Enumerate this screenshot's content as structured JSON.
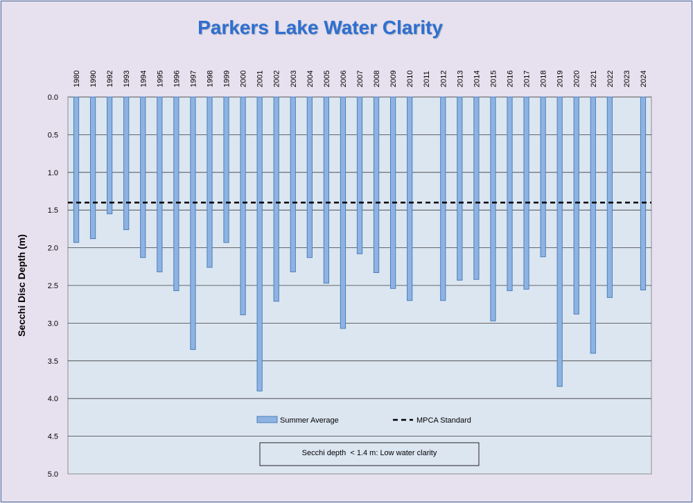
{
  "chart_data": {
    "type": "bar",
    "title": "Parkers Lake Water Clarity",
    "ylabel": "Secchi Disc Depth (m)",
    "xlabel": "",
    "ylim": [
      0,
      5
    ],
    "y_inverted": true,
    "y_ticks": [
      "0.0",
      "0.5",
      "1.0",
      "1.5",
      "2.0",
      "2.5",
      "3.0",
      "3.5",
      "4.0",
      "4.5",
      "5.0"
    ],
    "grid": true,
    "x_label_position": "top",
    "categories": [
      "1980",
      "1990",
      "1992",
      "1993",
      "1994",
      "1995",
      "1996",
      "1997",
      "1998",
      "1999",
      "2000",
      "2001",
      "2002",
      "2003",
      "2004",
      "2005",
      "2006",
      "2007",
      "2008",
      "2009",
      "2010",
      "2011",
      "2012",
      "2013",
      "2014",
      "2015",
      "2016",
      "2017",
      "2018",
      "2019",
      "2020",
      "2021",
      "2022",
      "2023",
      "2024"
    ],
    "series": [
      {
        "name": "Summer Average",
        "color": "#8eb3e2",
        "values": [
          1.93,
          1.88,
          1.55,
          1.76,
          2.13,
          2.32,
          2.57,
          3.35,
          2.26,
          1.93,
          2.89,
          3.9,
          2.71,
          2.32,
          2.13,
          2.47,
          3.07,
          2.08,
          2.33,
          2.54,
          2.7,
          null,
          2.7,
          2.43,
          2.42,
          2.97,
          2.57,
          2.55,
          2.12,
          3.84,
          2.88,
          3.4,
          2.66,
          null,
          2.56
        ]
      }
    ],
    "reference_line": {
      "name": "MPCA Standard",
      "value": 1.4
    },
    "legend_position": "bottom-center",
    "annotation": "Secchi depth  < 1.4 m: Low water clarity"
  },
  "colors": {
    "bar_fill": "#8eb3e2",
    "bar_stroke": "#4a7ebb",
    "plot_bg": "#dce6f1",
    "page_bg": "#e7e1ef",
    "title": "#2f6fd0"
  }
}
